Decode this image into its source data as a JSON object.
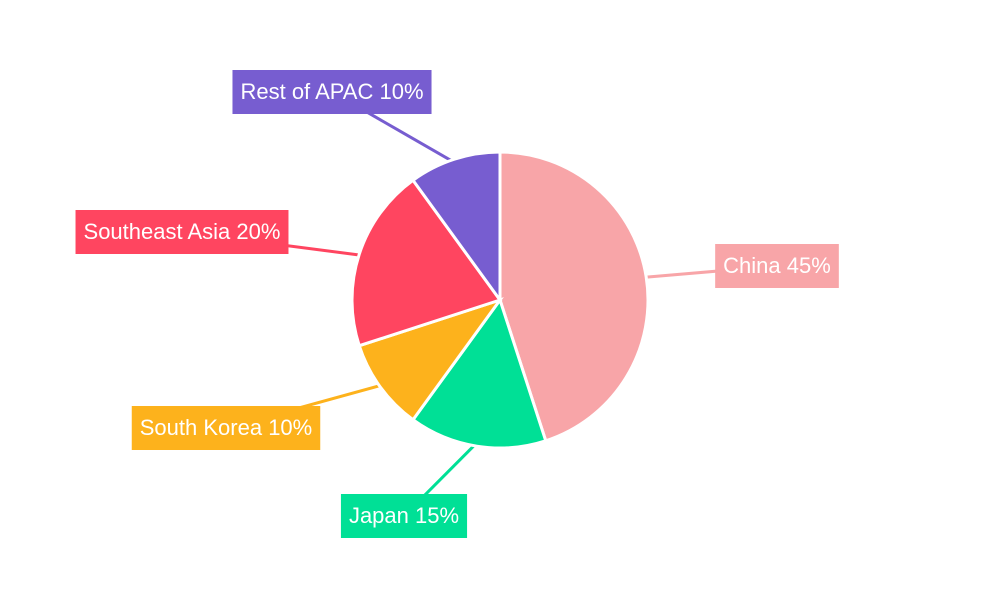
{
  "chart_data": {
    "type": "pie",
    "categories": [
      "China",
      "Japan",
      "South Korea",
      "Southeast Asia",
      "Rest of APAC"
    ],
    "values": [
      45,
      15,
      10,
      20,
      10
    ],
    "value_labels": [
      "45%",
      "15%",
      "10%",
      "20%",
      "10%"
    ],
    "colors": [
      "#f8a5a8",
      "#00e096",
      "#fdb21c",
      "#ff4560",
      "#775dd0"
    ]
  }
}
